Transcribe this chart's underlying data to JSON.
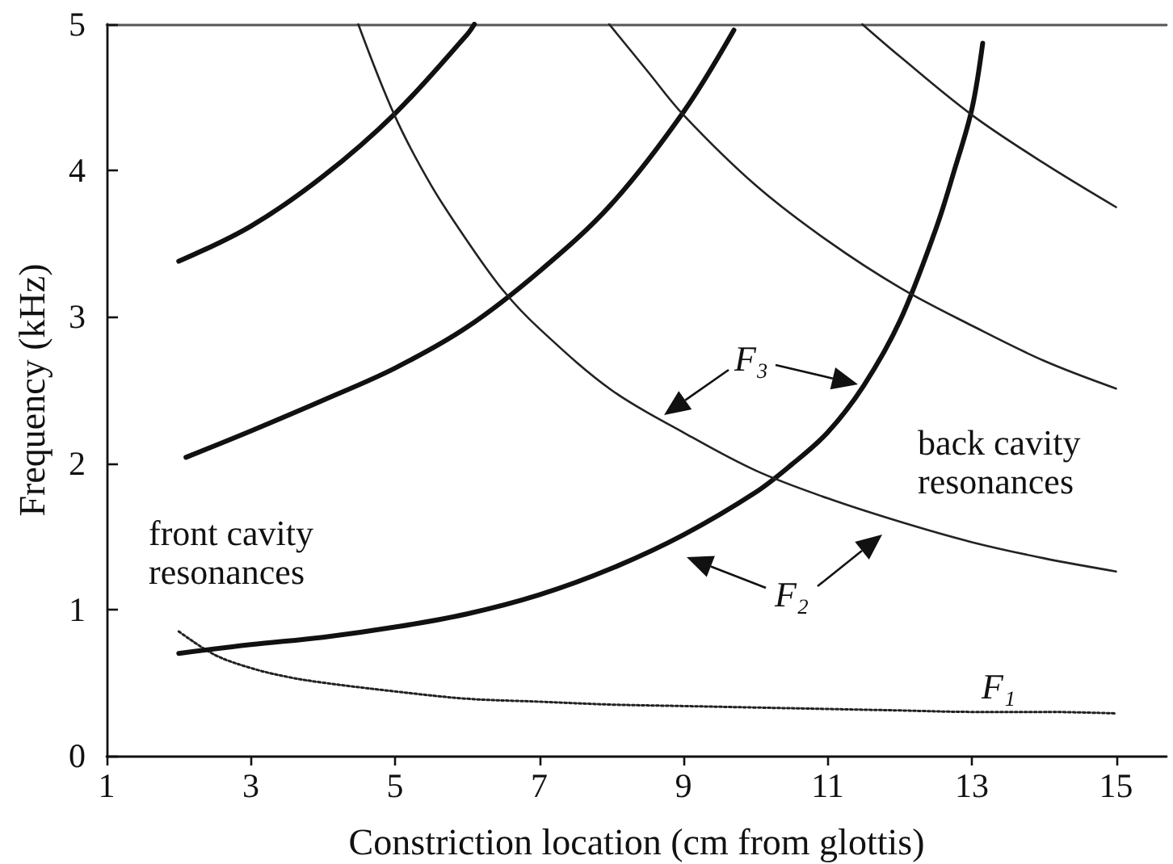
{
  "chart_data": {
    "type": "line",
    "xlabel": "Constriction location (cm from glottis)",
    "ylabel": "Frequency (kHz)",
    "xlim": [
      1,
      15.7
    ],
    "xticks": [
      1,
      3,
      5,
      7,
      9,
      11,
      13,
      15
    ],
    "ylim": [
      0,
      5
    ],
    "yticks": [
      0,
      1,
      2,
      3,
      4,
      5
    ],
    "grid": false,
    "marker": "none",
    "line_style": "solid",
    "annotations": [
      "front cavity resonances",
      "back cavity resonances",
      "F₃",
      "F₂",
      "F₁"
    ],
    "series": [
      {
        "color": "#222222",
        "line_style": "dotted",
        "x": [
          2,
          2.5,
          3,
          3.5,
          4,
          5,
          6,
          7,
          8,
          9,
          10,
          11,
          12,
          13,
          14,
          15
        ],
        "values": [
          0.85,
          0.69,
          0.6,
          0.54,
          0.5,
          0.44,
          0.39,
          0.37,
          0.35,
          0.34,
          0.33,
          0.32,
          0.31,
          0.3,
          0.3,
          0.29
        ]
      },
      {
        "color": "#111111",
        "x": [
          2,
          3,
          4,
          5,
          6,
          7,
          8,
          9,
          10,
          10.5,
          11,
          11.5,
          12,
          12.5,
          12.75,
          13,
          13.15
        ],
        "values": [
          0.7,
          0.76,
          0.81,
          0.88,
          0.97,
          1.1,
          1.28,
          1.51,
          1.8,
          1.99,
          2.21,
          2.53,
          2.97,
          3.6,
          3.99,
          4.42,
          4.87
        ]
      },
      {
        "color": "#111111",
        "x": [
          2.1,
          3,
          4,
          5,
          6,
          7,
          8,
          9,
          9.7
        ],
        "values": [
          2.04,
          2.22,
          2.43,
          2.65,
          2.93,
          3.31,
          3.77,
          4.4,
          4.96
        ]
      },
      {
        "color": "#111111",
        "x": [
          2,
          3,
          4,
          5,
          6,
          6.1
        ],
        "values": [
          3.38,
          3.62,
          3.96,
          4.39,
          4.93,
          5.0
        ]
      },
      {
        "color": "#222222",
        "x": [
          4.49,
          5,
          5.5,
          6,
          6.5,
          7,
          8,
          9,
          10,
          11,
          12,
          13,
          14,
          15
        ],
        "values": [
          5.0,
          4.37,
          3.9,
          3.52,
          3.18,
          2.92,
          2.5,
          2.21,
          1.95,
          1.76,
          1.6,
          1.46,
          1.35,
          1.26
        ]
      },
      {
        "color": "#222222",
        "x": [
          7.97,
          8.5,
          9,
          10,
          11,
          12,
          13,
          14,
          15
        ],
        "values": [
          5.0,
          4.68,
          4.38,
          3.9,
          3.52,
          3.2,
          2.94,
          2.7,
          2.51
        ]
      },
      {
        "color": "#222222",
        "x": [
          11.48,
          12,
          13,
          14,
          15
        ],
        "values": [
          5.0,
          4.78,
          4.38,
          4.05,
          3.75
        ]
      }
    ]
  }
}
